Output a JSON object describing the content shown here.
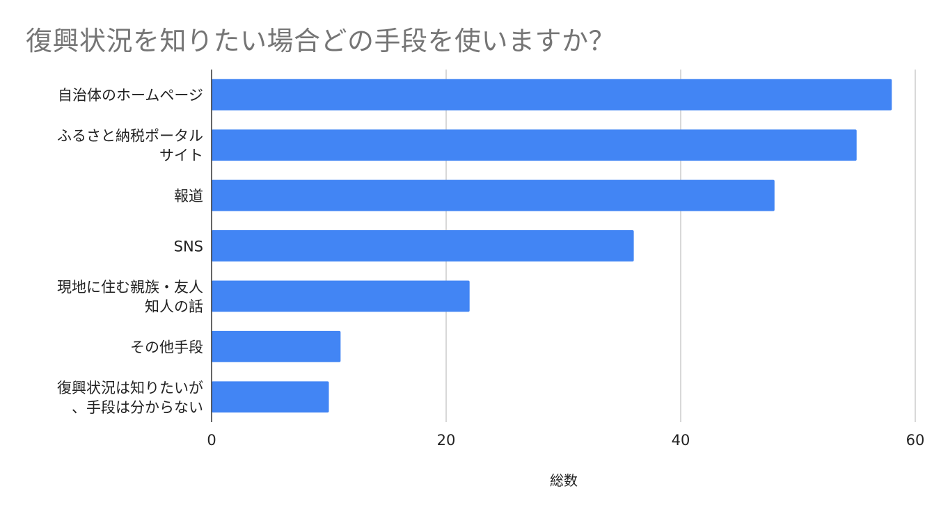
{
  "chart_data": {
    "type": "bar",
    "orientation": "horizontal",
    "title": "復興状況を知りたい場合どの手段を使いますか？",
    "xlabel": "総数",
    "ylabel": "",
    "categories": [
      [
        "自治体のホームページ"
      ],
      [
        "ふるさと納税ポータル",
        "サイト"
      ],
      [
        "報道"
      ],
      [
        "SNS"
      ],
      [
        "現地に住む親族・友人",
        "知人の話"
      ],
      [
        "その他手段"
      ],
      [
        "復興状況は知りたいが",
        "、手段は分からない"
      ]
    ],
    "values": [
      58,
      55,
      48,
      36,
      22,
      11,
      10
    ],
    "xlim": [
      0,
      60
    ],
    "xticks": [
      "0",
      "20",
      "40",
      "60"
    ],
    "grid": true,
    "legend": "none",
    "bar_color": "#4285f4",
    "grid_color": "#cccccc"
  }
}
